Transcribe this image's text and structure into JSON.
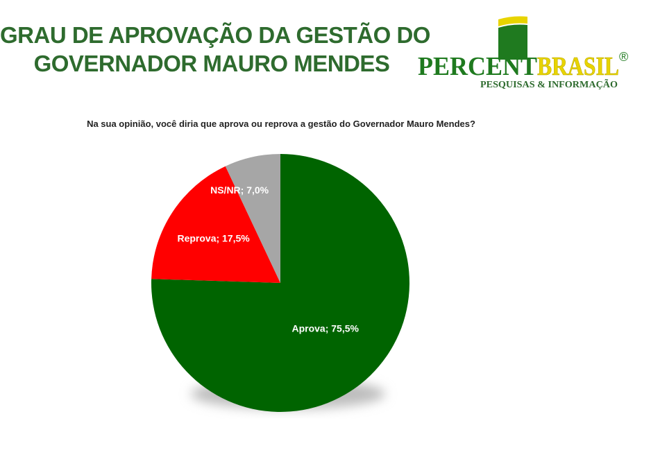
{
  "header": {
    "title_line1": "GRAU DE APROVAÇÃO DA GESTÃO DO",
    "title_line2": "GOVERNADOR MAURO MENDES"
  },
  "logo": {
    "word1": "PERCENT",
    "word2": "BRASIL",
    "registered": "®",
    "tagline": "PESQUISAS & INFORMAÇÃO",
    "colors": {
      "green": "#1f7a1f",
      "yellow": "#e8d400",
      "tagline": "#2e6b2e"
    }
  },
  "chart_data": {
    "type": "pie",
    "title": "Na sua opinião, você diria que aprova ou reprova a gestão do Governador Mauro Mendes?",
    "slices": [
      {
        "label": "Aprova; 75,5%",
        "name": "Aprova",
        "value": 75.5,
        "color": "#006400"
      },
      {
        "label": "Reprova; 17,5%",
        "name": "Reprova",
        "value": 17.5,
        "color": "#ff0000"
      },
      {
        "label": "NS/NR; 7,0%",
        "name": "NS/NR",
        "value": 7.0,
        "color": "#a6a6a6"
      }
    ],
    "start_angle": "12 o'clock",
    "direction": "clockwise",
    "legend": "none",
    "data_labels": "inside"
  }
}
